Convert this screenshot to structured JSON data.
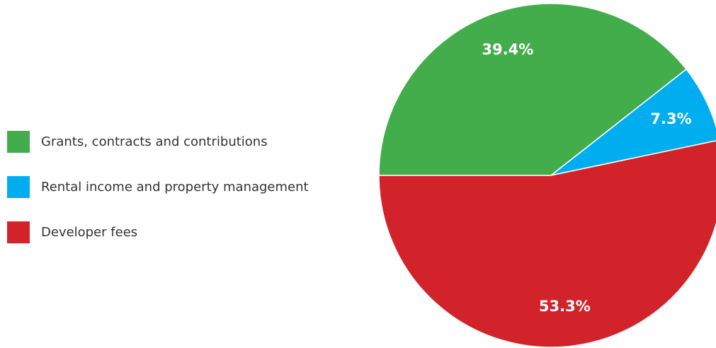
{
  "chart_data": {
    "type": "pie",
    "categories": [
      "Grants, contracts and contributions",
      "Rental income and property management",
      "Developer fees"
    ],
    "values": [
      39.4,
      7.3,
      53.3
    ],
    "value_labels": [
      "39.4%",
      "7.3%",
      "53.3%"
    ],
    "colors": [
      "#43ad4b",
      "#00aeef",
      "#d2232a"
    ],
    "legend": "left"
  }
}
